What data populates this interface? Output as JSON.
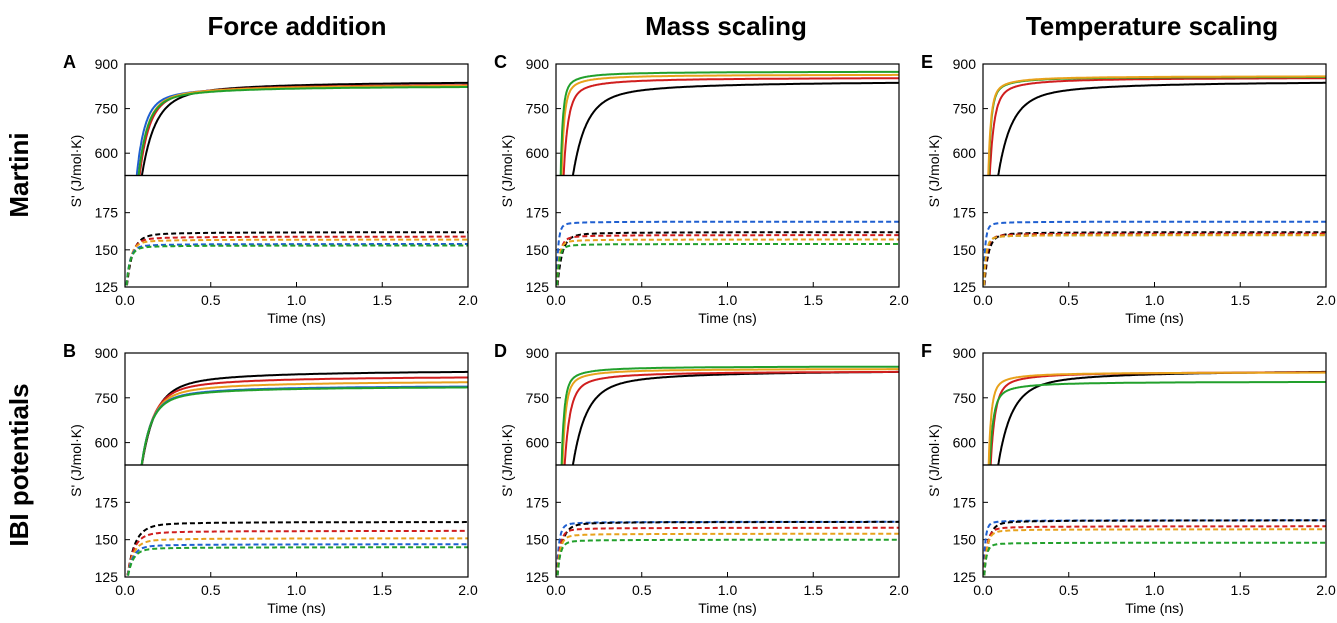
{
  "figure": {
    "column_titles": [
      "Force addition",
      "Mass scaling",
      "Temperature scaling"
    ],
    "row_titles": [
      "Martini",
      "IBI potentials"
    ]
  },
  "chart_data": [
    {
      "type": "line",
      "panel": "A",
      "xlabel": "Time (ns)",
      "ylabel": "S' (J/mol·K)",
      "xlim": [
        0,
        2
      ],
      "xticks": [
        0.0,
        0.5,
        1.0,
        1.5,
        2.0
      ],
      "upper": {
        "ylim": [
          525,
          900
        ],
        "yticks": [
          600,
          750,
          900
        ],
        "style": "solid",
        "series": [
          {
            "color": "#000000",
            "t0": 0.085,
            "plateau": 845,
            "tau": 0.3
          },
          {
            "color": "#1f5fd0",
            "t0": 0.06,
            "plateau": 830,
            "tau": 0.18
          },
          {
            "color": "#d01e1e",
            "t0": 0.075,
            "plateau": 835,
            "tau": 0.22
          },
          {
            "color": "#e8a21c",
            "t0": 0.07,
            "plateau": 832,
            "tau": 0.2
          },
          {
            "color": "#22a02c",
            "t0": 0.07,
            "plateau": 828,
            "tau": 0.2
          }
        ]
      },
      "lower": {
        "ylim": [
          125,
          200
        ],
        "yticks": [
          125,
          150,
          175
        ],
        "style": "dashed",
        "series": [
          {
            "color": "#000000",
            "plateau": 162,
            "tau": 0.1
          },
          {
            "color": "#d01e1e",
            "plateau": 159,
            "tau": 0.08
          },
          {
            "color": "#e8a21c",
            "plateau": 157,
            "tau": 0.07
          },
          {
            "color": "#1f5fd0",
            "plateau": 154,
            "tau": 0.06
          },
          {
            "color": "#22a02c",
            "plateau": 153,
            "tau": 0.06
          }
        ]
      }
    },
    {
      "type": "line",
      "panel": "C",
      "xlabel": "Time (ns)",
      "ylabel": "S' (J/mol·K)",
      "xlim": [
        0,
        2
      ],
      "xticks": [
        0.0,
        0.5,
        1.0,
        1.5,
        2.0
      ],
      "upper": {
        "ylim": [
          525,
          900
        ],
        "yticks": [
          600,
          750,
          900
        ],
        "style": "solid",
        "series": [
          {
            "color": "#000000",
            "t0": 0.085,
            "plateau": 845,
            "tau": 0.3
          },
          {
            "color": "#d01e1e",
            "t0": 0.04,
            "plateau": 855,
            "tau": 0.1
          },
          {
            "color": "#e8a21c",
            "t0": 0.03,
            "plateau": 865,
            "tau": 0.06
          },
          {
            "color": "#22a02c",
            "t0": 0.025,
            "plateau": 875,
            "tau": 0.05
          }
        ]
      },
      "lower": {
        "ylim": [
          125,
          200
        ],
        "yticks": [
          125,
          150,
          175
        ],
        "style": "dashed",
        "series": [
          {
            "color": "#1f5fd0",
            "plateau": 169,
            "tau": 0.03
          },
          {
            "color": "#000000",
            "plateau": 162,
            "tau": 0.08
          },
          {
            "color": "#d01e1e",
            "plateau": 160,
            "tau": 0.05
          },
          {
            "color": "#e8a21c",
            "plateau": 157,
            "tau": 0.04
          },
          {
            "color": "#22a02c",
            "plateau": 154,
            "tau": 0.04
          }
        ]
      }
    },
    {
      "type": "line",
      "panel": "E",
      "xlabel": "Time (ns)",
      "ylabel": "S' (J/mol·K)",
      "xlim": [
        0,
        2
      ],
      "xticks": [
        0.0,
        0.5,
        1.0,
        1.5,
        2.0
      ],
      "upper": {
        "ylim": [
          525,
          900
        ],
        "yticks": [
          600,
          750,
          900
        ],
        "style": "solid",
        "series": [
          {
            "color": "#000000",
            "t0": 0.075,
            "plateau": 845,
            "tau": 0.3
          },
          {
            "color": "#d01e1e",
            "t0": 0.035,
            "plateau": 855,
            "tau": 0.1
          },
          {
            "color": "#22a02c",
            "t0": 0.03,
            "plateau": 858,
            "tau": 0.06
          },
          {
            "color": "#e8a21c",
            "t0": 0.028,
            "plateau": 860,
            "tau": 0.06
          }
        ]
      },
      "lower": {
        "ylim": [
          125,
          200
        ],
        "yticks": [
          125,
          150,
          175
        ],
        "style": "dashed",
        "series": [
          {
            "color": "#1f5fd0",
            "plateau": 169,
            "tau": 0.03
          },
          {
            "color": "#000000",
            "plateau": 162,
            "tau": 0.07
          },
          {
            "color": "#d01e1e",
            "plateau": 161,
            "tau": 0.05
          },
          {
            "color": "#22a02c",
            "plateau": 160,
            "tau": 0.04
          },
          {
            "color": "#e8a21c",
            "plateau": 160,
            "tau": 0.04
          }
        ]
      }
    },
    {
      "type": "line",
      "panel": "B",
      "xlabel": "Time (ns)",
      "ylabel": "S' (J/mol·K)",
      "xlim": [
        0,
        2
      ],
      "xticks": [
        0.0,
        0.5,
        1.0,
        1.5,
        2.0
      ],
      "upper": {
        "ylim": [
          525,
          900
        ],
        "yticks": [
          600,
          750,
          900
        ],
        "style": "solid",
        "series": [
          {
            "color": "#000000",
            "t0": 0.085,
            "plateau": 845,
            "tau": 0.3
          },
          {
            "color": "#d01e1e",
            "t0": 0.085,
            "plateau": 825,
            "tau": 0.26
          },
          {
            "color": "#e8a21c",
            "t0": 0.085,
            "plateau": 808,
            "tau": 0.24
          },
          {
            "color": "#1f5fd0",
            "t0": 0.085,
            "plateau": 793,
            "tau": 0.22
          },
          {
            "color": "#22a02c",
            "t0": 0.085,
            "plateau": 790,
            "tau": 0.22
          }
        ]
      },
      "lower": {
        "ylim": [
          125,
          200
        ],
        "yticks": [
          125,
          150,
          175
        ],
        "style": "dashed",
        "series": [
          {
            "color": "#000000",
            "plateau": 162,
            "tau": 0.13
          },
          {
            "color": "#d01e1e",
            "plateau": 156,
            "tau": 0.11
          },
          {
            "color": "#e8a21c",
            "plateau": 151,
            "tau": 0.1
          },
          {
            "color": "#1f5fd0",
            "plateau": 147,
            "tau": 0.09
          },
          {
            "color": "#22a02c",
            "plateau": 145,
            "tau": 0.09
          }
        ]
      }
    },
    {
      "type": "line",
      "panel": "D",
      "xlabel": "Time (ns)",
      "ylabel": "S' (J/mol·K)",
      "xlim": [
        0,
        2
      ],
      "xticks": [
        0.0,
        0.5,
        1.0,
        1.5,
        2.0
      ],
      "upper": {
        "ylim": [
          525,
          900
        ],
        "yticks": [
          600,
          750,
          900
        ],
        "style": "solid",
        "series": [
          {
            "color": "#000000",
            "t0": 0.085,
            "plateau": 845,
            "tau": 0.3
          },
          {
            "color": "#d01e1e",
            "t0": 0.045,
            "plateau": 840,
            "tau": 0.12
          },
          {
            "color": "#e8a21c",
            "t0": 0.035,
            "plateau": 848,
            "tau": 0.07
          },
          {
            "color": "#22a02c",
            "t0": 0.03,
            "plateau": 856,
            "tau": 0.06
          }
        ]
      },
      "lower": {
        "ylim": [
          125,
          200
        ],
        "yticks": [
          125,
          150,
          175
        ],
        "style": "dashed",
        "series": [
          {
            "color": "#1f5fd0",
            "plateau": 162,
            "tau": 0.04
          },
          {
            "color": "#000000",
            "plateau": 162,
            "tau": 0.08
          },
          {
            "color": "#d01e1e",
            "plateau": 158,
            "tau": 0.05
          },
          {
            "color": "#e8a21c",
            "plateau": 154,
            "tau": 0.05
          },
          {
            "color": "#22a02c",
            "plateau": 150,
            "tau": 0.05
          }
        ]
      }
    },
    {
      "type": "line",
      "panel": "F",
      "xlabel": "Time (ns)",
      "ylabel": "S' (J/mol·K)",
      "xlim": [
        0,
        2
      ],
      "xticks": [
        0.0,
        0.5,
        1.0,
        1.5,
        2.0
      ],
      "upper": {
        "ylim": [
          525,
          900
        ],
        "yticks": [
          600,
          750,
          900
        ],
        "style": "solid",
        "series": [
          {
            "color": "#000000",
            "t0": 0.075,
            "plateau": 845,
            "tau": 0.3
          },
          {
            "color": "#d01e1e",
            "t0": 0.04,
            "plateau": 838,
            "tau": 0.1
          },
          {
            "color": "#22a02c",
            "t0": 0.035,
            "plateau": 805,
            "tau": 0.08
          },
          {
            "color": "#e8a21c",
            "t0": 0.03,
            "plateau": 836,
            "tau": 0.06
          }
        ]
      },
      "lower": {
        "ylim": [
          125,
          200
        ],
        "yticks": [
          125,
          150,
          175
        ],
        "style": "dashed",
        "series": [
          {
            "color": "#1f5fd0",
            "plateau": 163,
            "tau": 0.03
          },
          {
            "color": "#000000",
            "plateau": 163,
            "tau": 0.07
          },
          {
            "color": "#d01e1e",
            "plateau": 159,
            "tau": 0.05
          },
          {
            "color": "#e8a21c",
            "plateau": 157,
            "tau": 0.05
          },
          {
            "color": "#22a02c",
            "plateau": 148,
            "tau": 0.04
          }
        ]
      }
    }
  ]
}
